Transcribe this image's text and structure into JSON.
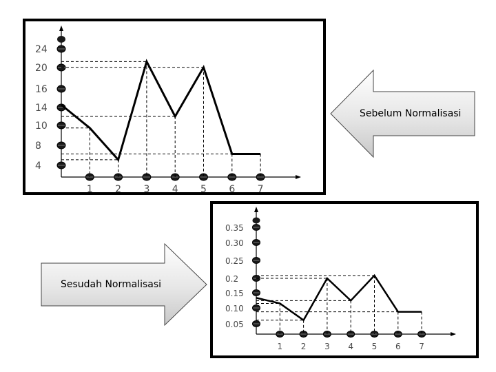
{
  "label_before": "Sebelum Normalisasi",
  "label_after": "Sesudah Normalisasi",
  "chart_data": [
    {
      "type": "line",
      "name": "before",
      "y_ticks": [
        "24",
        "20",
        "16",
        "14",
        "10",
        "8",
        "4"
      ],
      "x_ticks": [
        "1",
        "2",
        "3",
        "4",
        "5",
        "6",
        "7"
      ],
      "x": [
        0,
        1,
        2,
        3,
        4,
        5,
        6,
        7
      ],
      "values": [
        14.5,
        10.5,
        5,
        22,
        12.5,
        21,
        6,
        6
      ]
    },
    {
      "type": "line",
      "name": "after",
      "y_ticks": [
        "0.35",
        "0.30",
        "0.25",
        "0.2",
        "0.15",
        "0.10",
        "0.05"
      ],
      "x_ticks": [
        "1",
        "2",
        "3",
        "4",
        "5",
        "6",
        "7"
      ],
      "x": [
        0,
        1,
        2,
        3,
        4,
        5,
        6,
        7
      ],
      "values": [
        0.13,
        0.11,
        0.05,
        0.2,
        0.12,
        0.21,
        0.08,
        0.08
      ]
    }
  ]
}
